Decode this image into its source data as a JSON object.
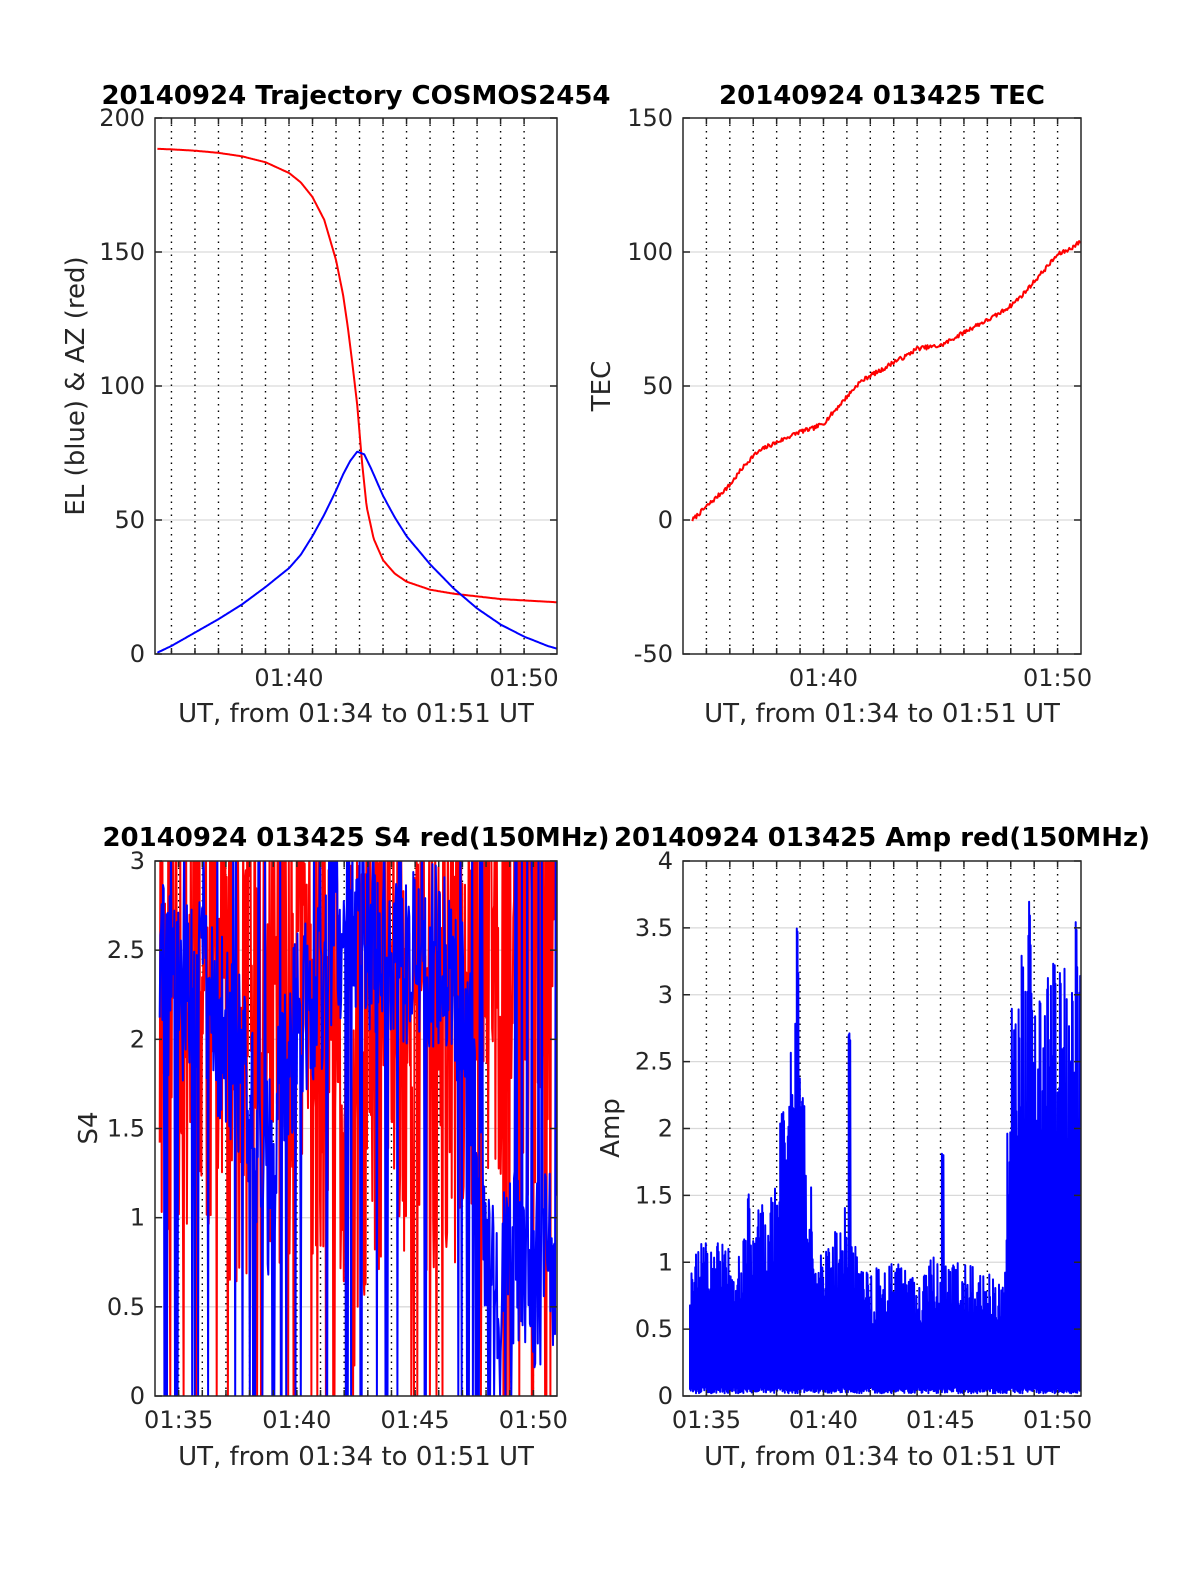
{
  "page": {
    "background": "#ffffff"
  },
  "colors": {
    "red": "#ff0000",
    "blue": "#0000ff",
    "grid": "#d9d9d9",
    "axis": "#262626"
  },
  "chart_data": [
    {
      "id": "trajectory",
      "type": "line",
      "title": "20140924 Trajectory COSMOS2454",
      "xlabel": "UT, from 01:34 to 01:51 UT",
      "ylabel": "EL (blue) & AZ (red)",
      "xlim_min": [
        34.3,
        51.4
      ],
      "ylim": [
        0,
        200
      ],
      "yticks": [
        0,
        50,
        100,
        150,
        200
      ],
      "yticklabels": [
        "0",
        "50",
        "100",
        "150",
        "200"
      ],
      "xticks_min": [
        40,
        50
      ],
      "xticklabels": [
        "01:40",
        "01:50"
      ],
      "minute_grid_min": [
        35,
        36,
        37,
        38,
        39,
        40,
        41,
        42,
        43,
        44,
        45,
        46,
        47,
        48,
        49,
        50
      ],
      "grid": true,
      "series": [
        {
          "color": "#ff0000",
          "x": [
            34.4,
            35,
            36,
            37,
            38,
            39,
            40,
            40.5,
            41,
            41.5,
            42,
            42.3,
            42.5,
            42.7,
            42.9,
            43.1,
            43.3,
            43.6,
            44,
            44.5,
            45,
            46,
            47,
            48,
            49,
            50,
            51,
            51.4
          ],
          "y": [
            188.5,
            188.3,
            187.8,
            187,
            185.7,
            183.5,
            179.5,
            176,
            170.5,
            162,
            147,
            134,
            122,
            108,
            93,
            72,
            55,
            43,
            35,
            30,
            27,
            24,
            22.5,
            21.5,
            20.5,
            20,
            19.5,
            19.3
          ]
        },
        {
          "color": "#0000ff",
          "x": [
            34.4,
            35,
            36,
            37,
            38,
            39,
            40,
            40.5,
            41,
            41.5,
            42,
            42.3,
            42.6,
            42.9,
            43.2,
            43.5,
            44,
            44.5,
            45,
            46,
            47,
            48,
            49,
            50,
            51,
            51.4
          ],
          "y": [
            0.5,
            3,
            8,
            13,
            18.5,
            25,
            32,
            37,
            44,
            52,
            61,
            67,
            72,
            75.5,
            74.5,
            69,
            59,
            51,
            44,
            33.5,
            24.5,
            17,
            11,
            6.5,
            3,
            2
          ]
        }
      ]
    },
    {
      "id": "tec",
      "type": "line",
      "title": "20140924 013425 TEC",
      "xlabel": "UT, from 01:34 to 01:51 UT",
      "ylabel": "TEC",
      "xlim_min": [
        34,
        51
      ],
      "ylim": [
        -50,
        150
      ],
      "yticks": [
        -50,
        0,
        50,
        100,
        150
      ],
      "yticklabels": [
        "-50",
        "0",
        "50",
        "100",
        "150"
      ],
      "xticks_min": [
        40,
        50
      ],
      "xticklabels": [
        "01:40",
        "01:50"
      ],
      "minute_grid_min": [
        35,
        36,
        37,
        38,
        39,
        40,
        41,
        42,
        43,
        44,
        45,
        46,
        47,
        48,
        49,
        50
      ],
      "grid": true,
      "series": [
        {
          "color": "#ff0000",
          "x": [
            34.4,
            35,
            35.5,
            36,
            36.5,
            37,
            37.5,
            38,
            38.5,
            39,
            39.5,
            40,
            40.5,
            41,
            41.5,
            42,
            42.5,
            43,
            43.5,
            44,
            44.5,
            45,
            45.5,
            46,
            46.5,
            47,
            47.5,
            48,
            48.5,
            49,
            49.5,
            50,
            50.5,
            51
          ],
          "y": [
            0,
            5,
            9,
            13,
            19,
            24,
            27,
            29,
            31,
            33,
            34,
            36,
            41,
            46,
            51,
            54,
            56,
            59,
            61,
            64,
            64.5,
            65,
            67.5,
            70,
            72.5,
            74.5,
            77,
            80,
            84,
            89,
            94,
            99,
            101,
            104
          ]
        }
      ]
    },
    {
      "id": "s4",
      "type": "line",
      "title": "20140924 013425 S4 red(150MHz)",
      "xlabel": "UT, from 01:34 to 01:51 UT",
      "ylabel": "S4",
      "xlim_min": [
        34,
        51
      ],
      "ylim": [
        0,
        3
      ],
      "yticks": [
        0,
        0.5,
        1,
        1.5,
        2,
        2.5,
        3
      ],
      "yticklabels": [
        "0",
        "0.5",
        "1",
        "1.5",
        "2",
        "2.5",
        "3"
      ],
      "xticks_min": [
        35,
        40,
        45,
        50
      ],
      "xticklabels": [
        "01:35",
        "01:40",
        "01:45",
        "01:50"
      ],
      "minute_grid_min": [
        35,
        36,
        37,
        38,
        39,
        40,
        41,
        42,
        43,
        44,
        45,
        46,
        47,
        48,
        49,
        50
      ],
      "grid": true,
      "series": [
        {
          "color": "#ff0000",
          "noisy": true,
          "seed": 11,
          "x": [
            34.2,
            35,
            36,
            37,
            38,
            39,
            40,
            41,
            41.8,
            42.4,
            43,
            44,
            45,
            46,
            47,
            47.8,
            48.5,
            49.5,
            50.5,
            51
          ],
          "y": [
            2.2,
            2.4,
            2.3,
            2.1,
            2,
            2.2,
            2.3,
            2.1,
            1.6,
            1.5,
            2,
            2.3,
            2.1,
            2,
            2.3,
            2.5,
            2.6,
            2.6,
            2.7,
            2.7
          ],
          "noise": 1.5
        },
        {
          "color": "#0000ff",
          "noisy": true,
          "seed": 29,
          "x": [
            34.2,
            35,
            36,
            37,
            38,
            38.8,
            39.5,
            40,
            41,
            42,
            43,
            44,
            45,
            46,
            47,
            47.7,
            48,
            49,
            50,
            51
          ],
          "y": [
            2.4,
            2.2,
            2.3,
            2,
            1.7,
            1.2,
            1.8,
            2.1,
            2.3,
            2.6,
            2.6,
            2.5,
            2.4,
            2.5,
            2.2,
            1.6,
            0.75,
            0.72,
            0.7,
            0.72
          ],
          "noise": 0.55
        }
      ]
    },
    {
      "id": "amp",
      "type": "line",
      "title": "20140924 013425 Amp red(150MHz)",
      "xlabel": "UT, from 01:34 to 01:51 UT",
      "ylabel": "Amp",
      "xlim_min": [
        34,
        51
      ],
      "ylim": [
        0,
        4
      ],
      "yticks": [
        0,
        0.5,
        1,
        1.5,
        2,
        2.5,
        3,
        3.5,
        4
      ],
      "yticklabels": [
        "0",
        "0.5",
        "1",
        "1.5",
        "2",
        "2.5",
        "3",
        "3.5",
        "4"
      ],
      "xticks_min": [
        35,
        40,
        45,
        50
      ],
      "xticklabels": [
        "01:35",
        "01:40",
        "01:45",
        "01:50"
      ],
      "minute_grid_min": [
        35,
        36,
        37,
        38,
        39,
        40,
        41,
        42,
        43,
        44,
        45,
        46,
        47,
        48,
        49,
        50
      ],
      "grid": true,
      "series": [
        {
          "color": "#0000ff",
          "envelope": true,
          "seed": 47,
          "x": [
            34.3,
            35,
            36,
            37,
            37.5,
            38,
            38.5,
            39,
            39.3,
            39.7,
            40.5,
            41,
            41.5,
            42,
            43,
            44,
            45,
            46,
            47,
            47.7,
            48,
            48.5,
            49,
            50,
            51
          ],
          "y": [
            1.0,
            1.15,
            1.1,
            1.2,
            1.5,
            1.7,
            2.3,
            3.0,
            2.0,
            1.0,
            1.2,
            1.4,
            1.0,
            0.9,
            0.95,
            0.9,
            1.05,
            0.95,
            0.9,
            0.8,
            3.0,
            3.2,
            3.0,
            3.1,
            3.0
          ],
          "peaks": [
            [
              38.9,
              3.5
            ],
            [
              41.1,
              2.85
            ],
            [
              48.8,
              3.7
            ],
            [
              50.8,
              3.55
            ],
            [
              45.1,
              1.9
            ],
            [
              36.8,
              1.55
            ],
            [
              38.2,
              2.15
            ]
          ]
        }
      ]
    }
  ]
}
